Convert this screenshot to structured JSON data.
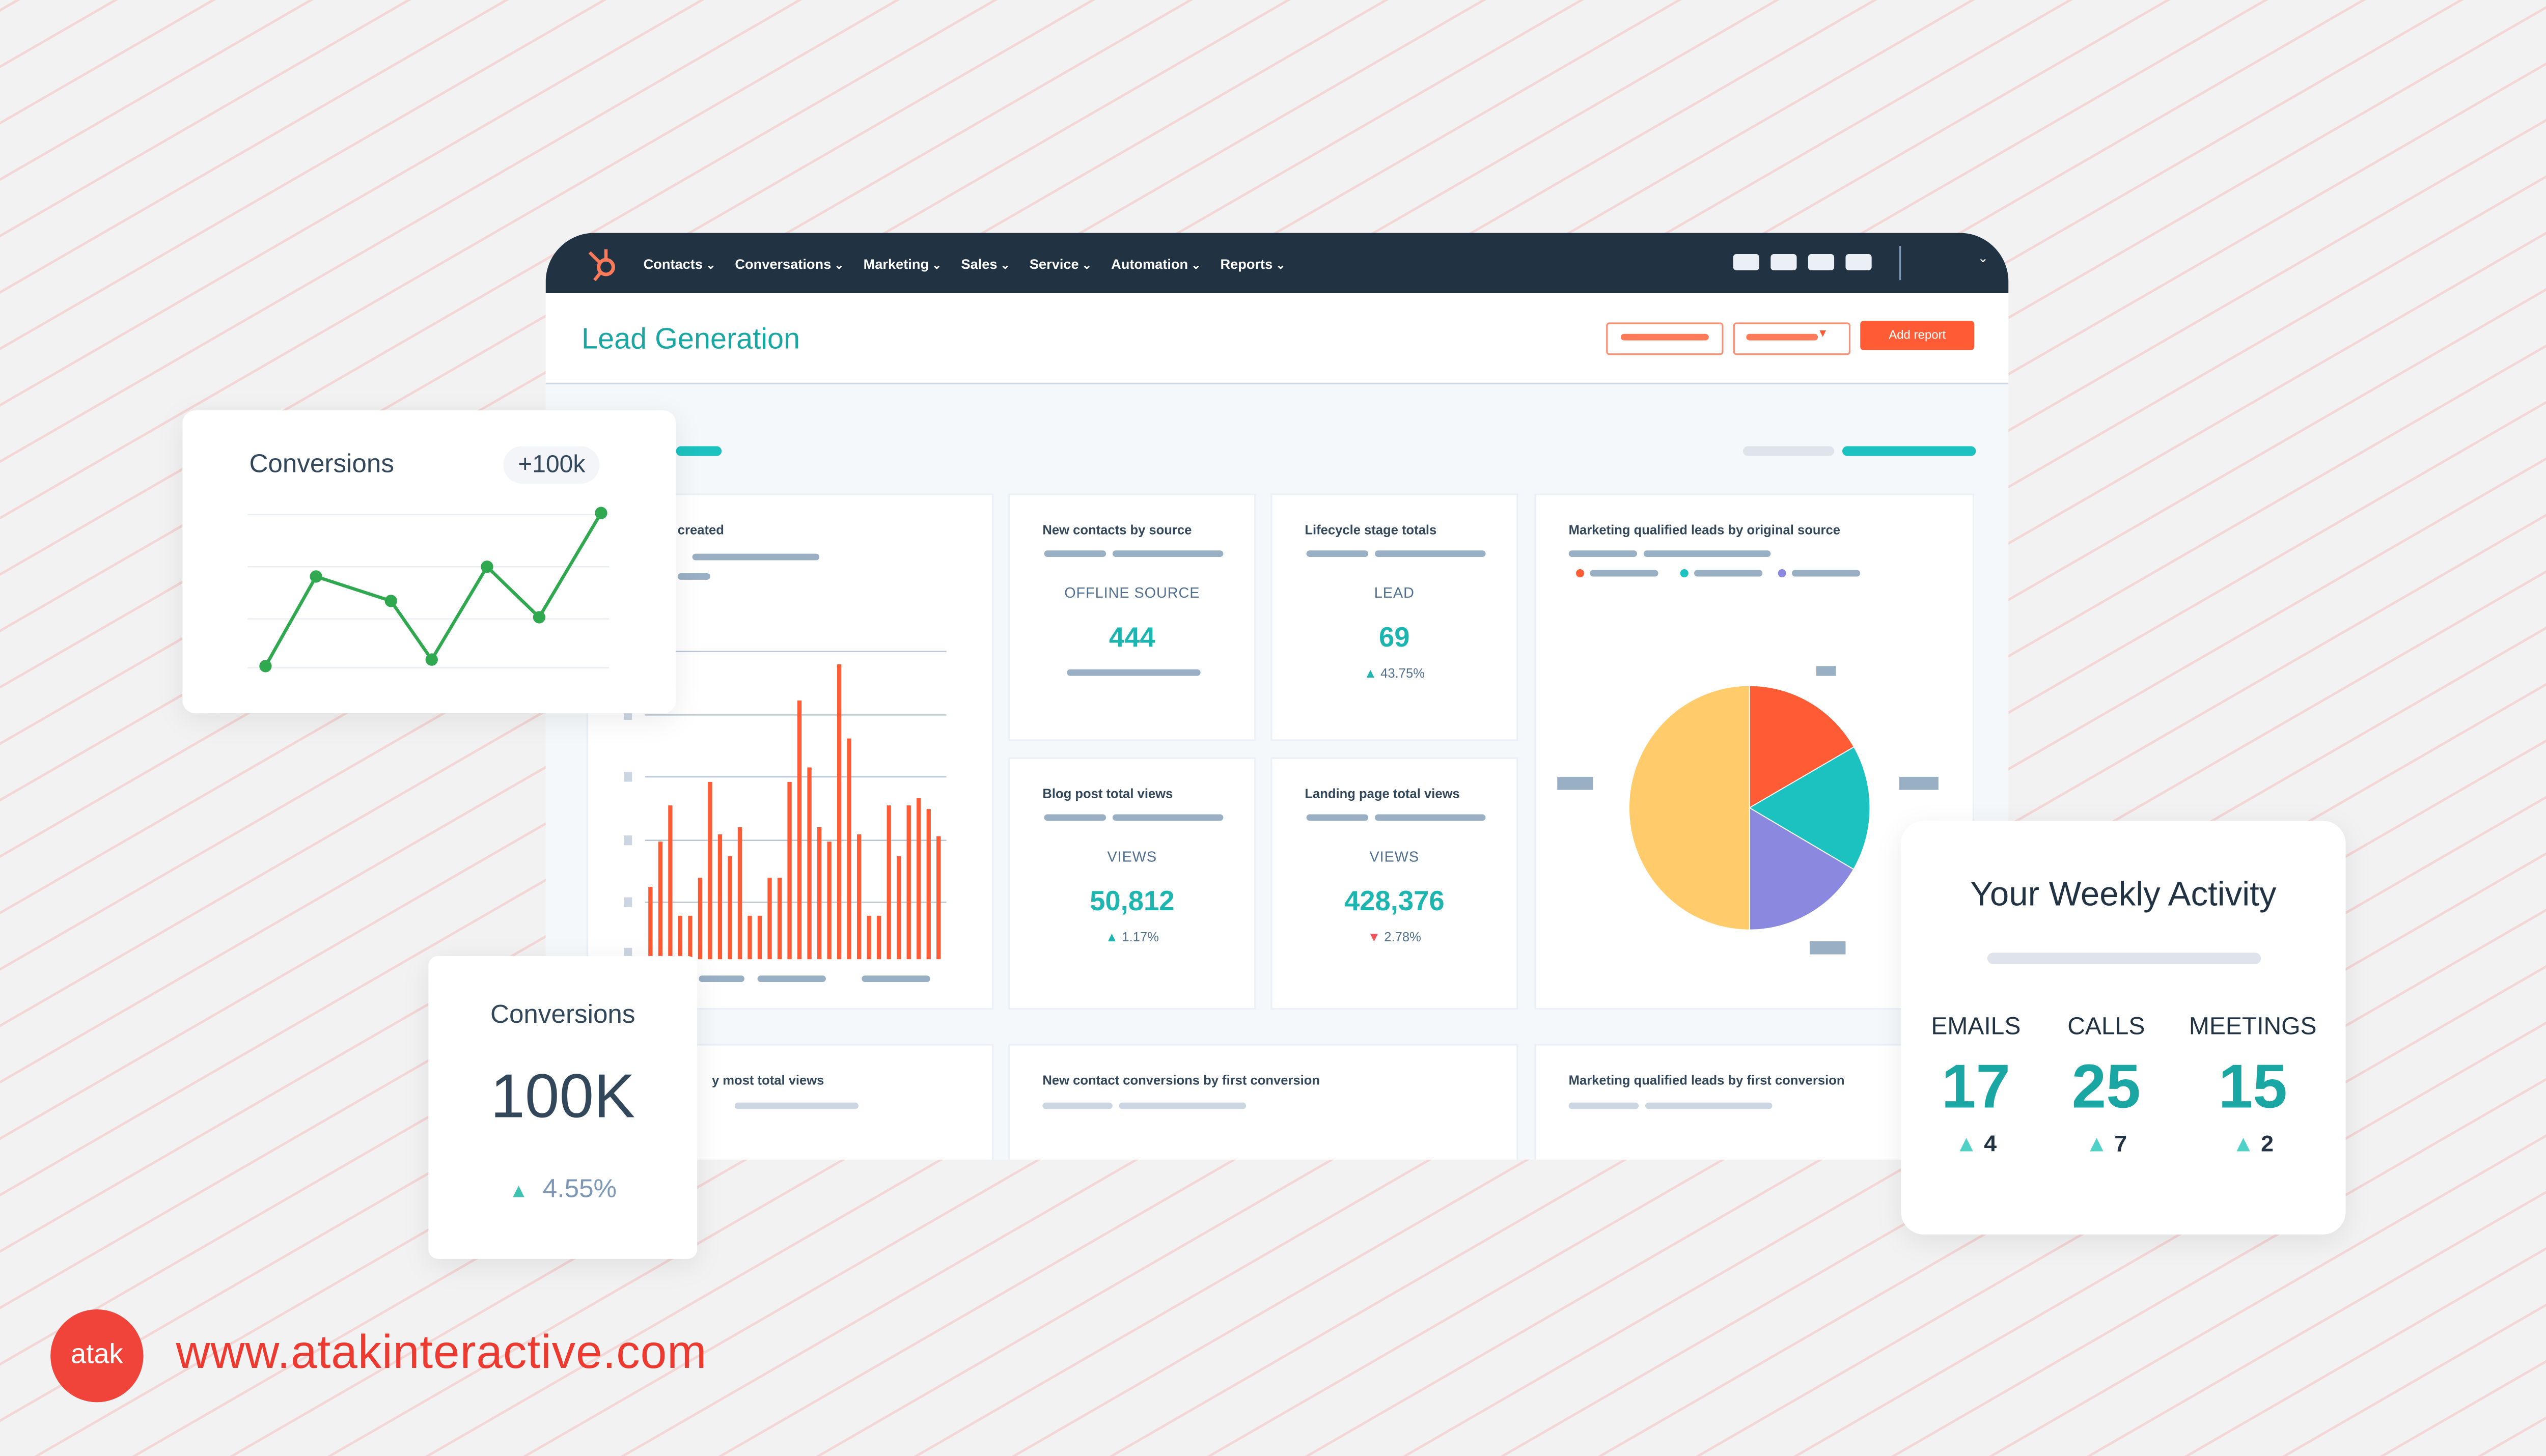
{
  "nav": {
    "items": [
      "Contacts",
      "Conversations",
      "Marketing",
      "Sales",
      "Service",
      "Automation",
      "Reports"
    ]
  },
  "header": {
    "title": "Lead Generation",
    "add_report": "Add report"
  },
  "cards": {
    "contacts_created": {
      "title": "created"
    },
    "new_contacts": {
      "title": "New contacts by source",
      "label": "OFFLINE SOURCE",
      "value": "444"
    },
    "lifecycle": {
      "title": "Lifecycle stage totals",
      "label": "LEAD",
      "value": "69",
      "change": "43.75%",
      "direction": "up"
    },
    "blog": {
      "title": "Blog post total views",
      "label": "VIEWS",
      "value": "50,812",
      "change": "1.17%",
      "direction": "up"
    },
    "landing": {
      "title": "Landing page total views",
      "label": "VIEWS",
      "value": "428,376",
      "change": "2.78%",
      "direction": "down"
    },
    "mql_source": {
      "title": "Marketing qualified leads by original source"
    },
    "most_views": {
      "title": "y most total views"
    },
    "new_conv": {
      "title": "New contact conversions by first conversion"
    },
    "mql_conv": {
      "title": "Marketing qualified leads by first conversion"
    }
  },
  "conversions_line": {
    "title": "Conversions",
    "badge": "+100k"
  },
  "conversions_kpi": {
    "title": "Conversions",
    "value": "100K",
    "change": "4.55%"
  },
  "weekly": {
    "title": "Your Weekly Activity",
    "stats": [
      {
        "label": "EMAILS",
        "value": "17",
        "change": "4"
      },
      {
        "label": "CALLS",
        "value": "25",
        "change": "7"
      },
      {
        "label": "MEETINGS",
        "value": "15",
        "change": "2"
      }
    ]
  },
  "brand": {
    "logo": "atak",
    "url": "www.atakinteractive.com"
  },
  "colors": {
    "nav": "#213343",
    "teal": "#1db5b0",
    "orange": "#ff5c35",
    "green": "#2fa84f",
    "brand_red": "#f0433a"
  },
  "chart_data": [
    {
      "type": "bar",
      "values": [
        200,
        325,
        425,
        120,
        120,
        225,
        490,
        345,
        285,
        365,
        120,
        120,
        225,
        225,
        490,
        715,
        530,
        365,
        325,
        815,
        610,
        345,
        120,
        120,
        425,
        285,
        425,
        445,
        415,
        340
      ],
      "color": "#ff5c35"
    },
    {
      "type": "pie",
      "values": [
        16.7,
        16.7,
        16.6,
        50
      ],
      "colors": [
        "#ff5c35",
        "#1cc2c0",
        "#8b88e0",
        "#ffcb6b"
      ]
    },
    {
      "type": "line",
      "values": [
        11,
        66,
        51,
        15,
        72,
        41,
        105
      ],
      "color": "#2fa84f"
    }
  ]
}
